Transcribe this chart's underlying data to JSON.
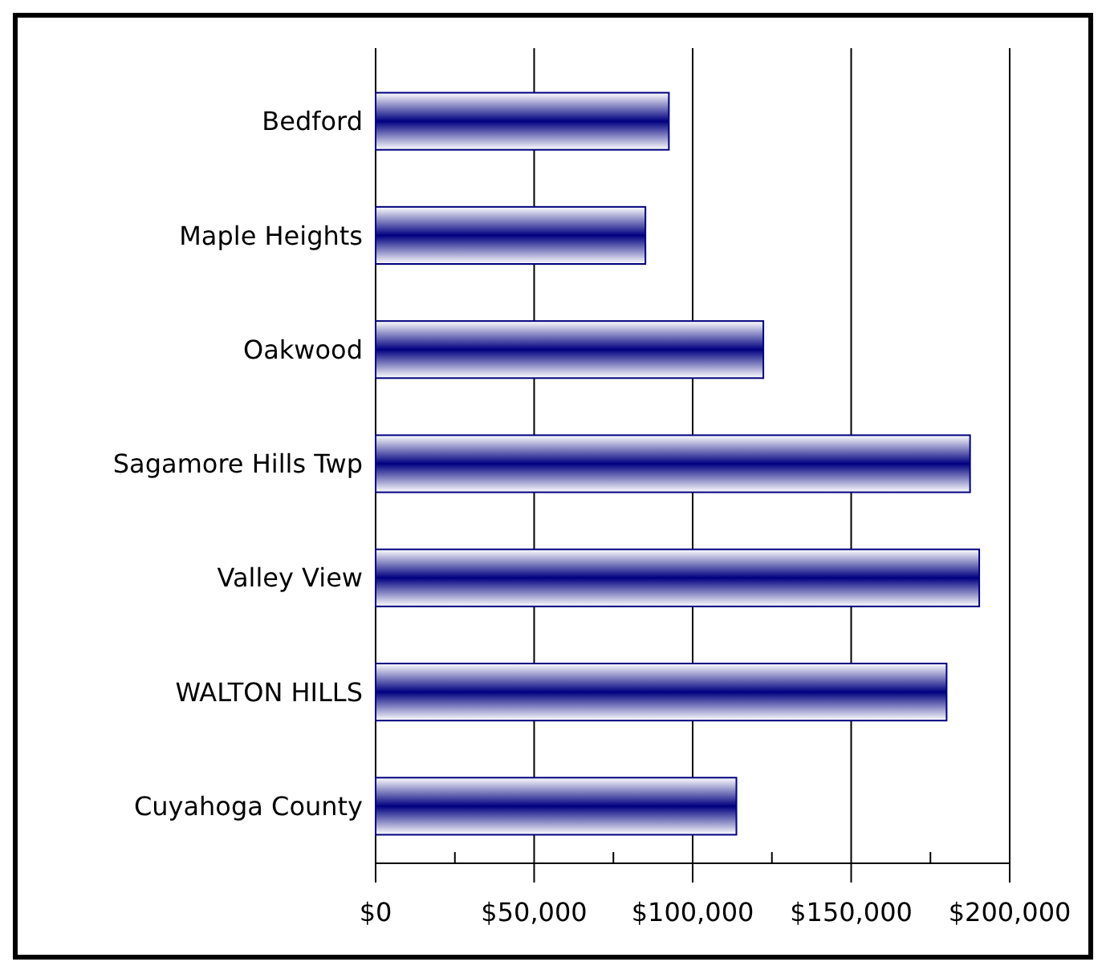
{
  "chart_data": {
    "type": "bar",
    "orientation": "horizontal",
    "categories": [
      "Bedford",
      "Maple Heights",
      "Oakwood",
      "Sagamore Hills Twp",
      "Valley View",
      "WALTON HILLS",
      "Cuyahoga County"
    ],
    "values": [
      92500,
      85100,
      122300,
      187500,
      190400,
      180100,
      113800
    ],
    "color": "#000080",
    "xlim": [
      0,
      200000
    ],
    "xticks": [
      {
        "value": 0,
        "label": "$0"
      },
      {
        "value": 25000,
        "label": null
      },
      {
        "value": 50000,
        "label": "$50,000"
      },
      {
        "value": 75000,
        "label": null
      },
      {
        "value": 100000,
        "label": "$100,000"
      },
      {
        "value": 125000,
        "label": null
      },
      {
        "value": 150000,
        "label": "$150,000"
      },
      {
        "value": 175000,
        "label": null
      },
      {
        "value": 200000,
        "label": "$200,000"
      }
    ],
    "grid": "x"
  }
}
